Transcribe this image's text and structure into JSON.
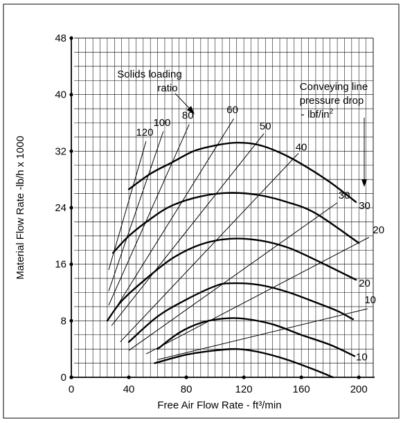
{
  "chart_data": {
    "type": "line",
    "xlabel": "Free Air Flow Rate - ft³/min",
    "ylabel": "Material Flow Rate -lb/h x 1000",
    "xlim": [
      0,
      210
    ],
    "ylim": [
      0,
      48
    ],
    "x_ticks": [
      0,
      40,
      80,
      120,
      160,
      200
    ],
    "y_ticks": [
      0,
      8,
      16,
      24,
      32,
      40,
      48
    ],
    "grid": true,
    "pressure_title_lines": [
      "Conveying line",
      "pressure drop",
      "- lbf/in"
    ],
    "pressure_title_sup": "2",
    "ratio_title_lines": [
      "Solids loading",
      "ratio"
    ],
    "pressure_curves": [
      {
        "label": "10",
        "points": [
          [
            58,
            2.0
          ],
          [
            80,
            3.2
          ],
          [
            100,
            3.8
          ],
          [
            115,
            4.0
          ],
          [
            130,
            3.6
          ],
          [
            150,
            2.5
          ],
          [
            170,
            1.0
          ],
          [
            182,
            0
          ]
        ]
      },
      {
        "label": "10",
        "points": [
          [
            60,
            4.0
          ],
          [
            75,
            6.3
          ],
          [
            90,
            7.7
          ],
          [
            105,
            8.3
          ],
          [
            120,
            8.3
          ],
          [
            140,
            7.5
          ],
          [
            160,
            6.0
          ],
          [
            180,
            4.6
          ],
          [
            197,
            3.0
          ]
        ]
      },
      {
        "label": "20",
        "points": [
          [
            40,
            5.0
          ],
          [
            60,
            8.6
          ],
          [
            80,
            11.0
          ],
          [
            100,
            12.9
          ],
          [
            110,
            13.3
          ],
          [
            130,
            13.1
          ],
          [
            150,
            12.1
          ],
          [
            170,
            10.6
          ],
          [
            185,
            9.4
          ],
          [
            196,
            8.2
          ]
        ]
      },
      {
        "label": "20",
        "points": [
          [
            25,
            8.0
          ],
          [
            35,
            10.8
          ],
          [
            50,
            13.6
          ],
          [
            70,
            16.8
          ],
          [
            90,
            18.8
          ],
          [
            110,
            19.6
          ],
          [
            130,
            19.4
          ],
          [
            150,
            18.4
          ],
          [
            170,
            16.6
          ],
          [
            198,
            13.8
          ]
        ]
      },
      {
        "label": "30",
        "points": [
          [
            29,
            17.6
          ],
          [
            40,
            20.0
          ],
          [
            55,
            22.4
          ],
          [
            70,
            24.3
          ],
          [
            90,
            25.6
          ],
          [
            110,
            26.1
          ],
          [
            130,
            25.8
          ],
          [
            150,
            24.8
          ],
          [
            170,
            23.2
          ],
          [
            200,
            19.0
          ]
        ]
      },
      {
        "label": "30",
        "points": [
          [
            40,
            26.6
          ],
          [
            55,
            28.8
          ],
          [
            70,
            30.4
          ],
          [
            85,
            32.0
          ],
          [
            100,
            32.8
          ],
          [
            115,
            33.2
          ],
          [
            130,
            32.9
          ],
          [
            145,
            31.8
          ],
          [
            160,
            30.2
          ],
          [
            180,
            27.6
          ],
          [
            198,
            24.8
          ]
        ]
      }
    ],
    "ratio_lines": [
      {
        "label": "120",
        "from": [
          26,
          15.2
        ],
        "to": [
          52,
          33.4
        ]
      },
      {
        "label": "100",
        "from": [
          26,
          12.2
        ],
        "to": [
          64,
          34.8
        ]
      },
      {
        "label": "80",
        "from": [
          26,
          10.2
        ],
        "to": [
          82,
          35.8
        ]
      },
      {
        "label": "60",
        "from": [
          27,
          8.5
        ],
        "to": [
          113,
          36.6
        ]
      },
      {
        "label": "50",
        "from": [
          28,
          7.3
        ],
        "to": [
          134,
          34.5
        ]
      },
      {
        "label": "40",
        "from": [
          34,
          5.0
        ],
        "to": [
          158,
          31.7
        ]
      },
      {
        "label": "30",
        "from": [
          40,
          3.8
        ],
        "to": [
          185,
          24.7
        ]
      },
      {
        "label": "20",
        "from": [
          52,
          3.3
        ],
        "to": [
          207,
          19.8
        ]
      },
      {
        "label": "10",
        "from": [
          60,
          2.5
        ],
        "to": [
          206,
          9.7
        ]
      }
    ]
  }
}
